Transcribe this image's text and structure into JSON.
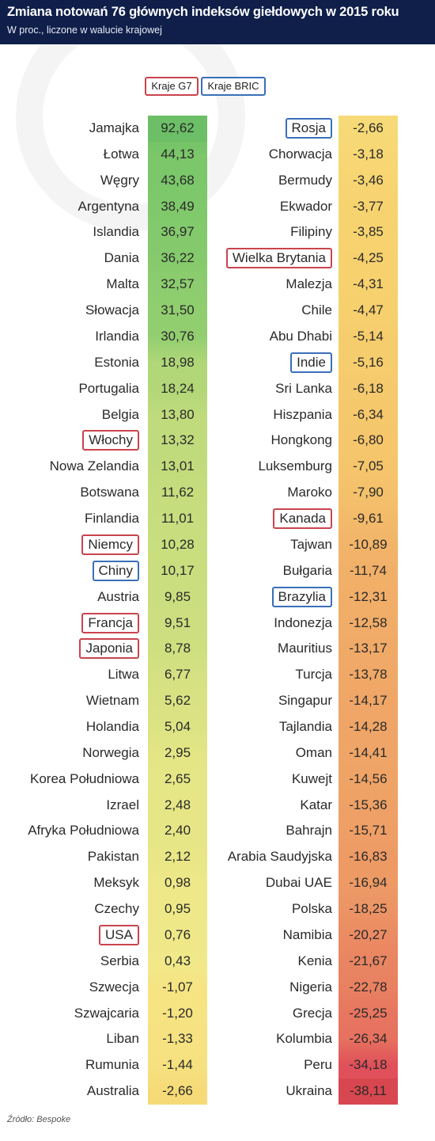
{
  "header": {
    "title": "Zmiana notowań 76 głównych indeksów giełdowych w 2015 roku",
    "subtitle": "W proc., liczone w walucie krajowej"
  },
  "legend": {
    "g7": "Kraje G7",
    "bric": "Kraje BRIC"
  },
  "colors": {
    "g7_border": "#c9444d",
    "bric_border": "#3a6fb8",
    "header_bg": "#0f1f4a",
    "scale_high": "#7cc86a",
    "scale_mid": "#f5ea8a",
    "scale_low": "#e0505a"
  },
  "source": "Źródło: Bespoke",
  "chart_data": {
    "type": "table",
    "columns": [
      [
        {
          "country": "Jamajka",
          "value": 92.62,
          "label": "92,62",
          "group": ""
        },
        {
          "country": "Łotwa",
          "value": 44.13,
          "label": "44,13",
          "group": ""
        },
        {
          "country": "Węgry",
          "value": 43.68,
          "label": "43,68",
          "group": ""
        },
        {
          "country": "Argentyna",
          "value": 38.49,
          "label": "38,49",
          "group": ""
        },
        {
          "country": "Islandia",
          "value": 36.97,
          "label": "36,97",
          "group": ""
        },
        {
          "country": "Dania",
          "value": 36.22,
          "label": "36,22",
          "group": ""
        },
        {
          "country": "Malta",
          "value": 32.57,
          "label": "32,57",
          "group": ""
        },
        {
          "country": "Słowacja",
          "value": 31.5,
          "label": "31,50",
          "group": ""
        },
        {
          "country": "Irlandia",
          "value": 30.76,
          "label": "30,76",
          "group": ""
        },
        {
          "country": "Estonia",
          "value": 18.98,
          "label": "18,98",
          "group": ""
        },
        {
          "country": "Portugalia",
          "value": 18.24,
          "label": "18,24",
          "group": ""
        },
        {
          "country": "Belgia",
          "value": 13.8,
          "label": "13,80",
          "group": ""
        },
        {
          "country": "Włochy",
          "value": 13.32,
          "label": "13,32",
          "group": "g7"
        },
        {
          "country": "Nowa Zelandia",
          "value": 13.01,
          "label": "13,01",
          "group": ""
        },
        {
          "country": "Botswana",
          "value": 11.62,
          "label": "11,62",
          "group": ""
        },
        {
          "country": "Finlandia",
          "value": 11.01,
          "label": "11,01",
          "group": ""
        },
        {
          "country": "Niemcy",
          "value": 10.28,
          "label": "10,28",
          "group": "g7"
        },
        {
          "country": "Chiny",
          "value": 10.17,
          "label": "10,17",
          "group": "bric"
        },
        {
          "country": "Austria",
          "value": 9.85,
          "label": "9,85",
          "group": ""
        },
        {
          "country": "Francja",
          "value": 9.51,
          "label": "9,51",
          "group": "g7"
        },
        {
          "country": "Japonia",
          "value": 8.78,
          "label": "8,78",
          "group": "g7"
        },
        {
          "country": "Litwa",
          "value": 6.77,
          "label": "6,77",
          "group": ""
        },
        {
          "country": "Wietnam",
          "value": 5.62,
          "label": "5,62",
          "group": ""
        },
        {
          "country": "Holandia",
          "value": 5.04,
          "label": "5,04",
          "group": ""
        },
        {
          "country": "Norwegia",
          "value": 2.95,
          "label": "2,95",
          "group": ""
        },
        {
          "country": "Korea Południowa",
          "value": 2.65,
          "label": "2,65",
          "group": ""
        },
        {
          "country": "Izrael",
          "value": 2.48,
          "label": "2,48",
          "group": ""
        },
        {
          "country": "Afryka Południowa",
          "value": 2.4,
          "label": "2,40",
          "group": ""
        },
        {
          "country": "Pakistan",
          "value": 2.12,
          "label": "2,12",
          "group": ""
        },
        {
          "country": "Meksyk",
          "value": 0.98,
          "label": "0,98",
          "group": ""
        },
        {
          "country": "Czechy",
          "value": 0.95,
          "label": "0,95",
          "group": ""
        },
        {
          "country": "USA",
          "value": 0.76,
          "label": "0,76",
          "group": "g7"
        },
        {
          "country": "Serbia",
          "value": 0.43,
          "label": "0,43",
          "group": ""
        },
        {
          "country": "Szwecja",
          "value": -1.07,
          "label": "-1,07",
          "group": ""
        },
        {
          "country": "Szwajcaria",
          "value": -1.2,
          "label": "-1,20",
          "group": ""
        },
        {
          "country": "Liban",
          "value": -1.33,
          "label": "-1,33",
          "group": ""
        },
        {
          "country": "Rumunia",
          "value": -1.44,
          "label": "-1,44",
          "group": ""
        },
        {
          "country": "Australia",
          "value": -2.66,
          "label": "-2,66",
          "group": ""
        }
      ],
      [
        {
          "country": "Rosja",
          "value": -2.66,
          "label": "-2,66",
          "group": "bric"
        },
        {
          "country": "Chorwacja",
          "value": -3.18,
          "label": "-3,18",
          "group": ""
        },
        {
          "country": "Bermudy",
          "value": -3.46,
          "label": "-3,46",
          "group": ""
        },
        {
          "country": "Ekwador",
          "value": -3.77,
          "label": "-3,77",
          "group": ""
        },
        {
          "country": "Filipiny",
          "value": -3.85,
          "label": "-3,85",
          "group": ""
        },
        {
          "country": "Wielka Brytania",
          "value": -4.25,
          "label": "-4,25",
          "group": "g7"
        },
        {
          "country": "Malezja",
          "value": -4.31,
          "label": "-4,31",
          "group": ""
        },
        {
          "country": "Chile",
          "value": -4.47,
          "label": "-4,47",
          "group": ""
        },
        {
          "country": "Abu Dhabi",
          "value": -5.14,
          "label": "-5,14",
          "group": ""
        },
        {
          "country": "Indie",
          "value": -5.16,
          "label": "-5,16",
          "group": "bric"
        },
        {
          "country": "Sri Lanka",
          "value": -6.18,
          "label": "-6,18",
          "group": ""
        },
        {
          "country": "Hiszpania",
          "value": -6.34,
          "label": "-6,34",
          "group": ""
        },
        {
          "country": "Hongkong",
          "value": -6.8,
          "label": "-6,80",
          "group": ""
        },
        {
          "country": "Luksemburg",
          "value": -7.05,
          "label": "-7,05",
          "group": ""
        },
        {
          "country": "Maroko",
          "value": -7.9,
          "label": "-7,90",
          "group": ""
        },
        {
          "country": "Kanada",
          "value": -9.61,
          "label": "-9,61",
          "group": "g7"
        },
        {
          "country": "Tajwan",
          "value": -10.89,
          "label": "-10,89",
          "group": ""
        },
        {
          "country": "Bułgaria",
          "value": -11.74,
          "label": "-11,74",
          "group": ""
        },
        {
          "country": "Brazylia",
          "value": -12.31,
          "label": "-12,31",
          "group": "bric"
        },
        {
          "country": "Indonezja",
          "value": -12.58,
          "label": "-12,58",
          "group": ""
        },
        {
          "country": "Mauritius",
          "value": -13.17,
          "label": "-13,17",
          "group": ""
        },
        {
          "country": "Turcja",
          "value": -13.78,
          "label": "-13,78",
          "group": ""
        },
        {
          "country": "Singapur",
          "value": -14.17,
          "label": "-14,17",
          "group": ""
        },
        {
          "country": "Tajlandia",
          "value": -14.28,
          "label": "-14,28",
          "group": ""
        },
        {
          "country": "Oman",
          "value": -14.41,
          "label": "-14,41",
          "group": ""
        },
        {
          "country": "Kuwejt",
          "value": -14.56,
          "label": "-14,56",
          "group": ""
        },
        {
          "country": "Katar",
          "value": -15.36,
          "label": "-15,36",
          "group": ""
        },
        {
          "country": "Bahrajn",
          "value": -15.71,
          "label": "-15,71",
          "group": ""
        },
        {
          "country": "Arabia Saudyjska",
          "value": -16.83,
          "label": "-16,83",
          "group": ""
        },
        {
          "country": "Dubai UAE",
          "value": -16.94,
          "label": "-16,94",
          "group": ""
        },
        {
          "country": "Polska",
          "value": -18.25,
          "label": "-18,25",
          "group": ""
        },
        {
          "country": "Namibia",
          "value": -20.27,
          "label": "-20,27",
          "group": ""
        },
        {
          "country": "Kenia",
          "value": -21.67,
          "label": "-21,67",
          "group": ""
        },
        {
          "country": "Nigeria",
          "value": -22.78,
          "label": "-22,78",
          "group": ""
        },
        {
          "country": "Grecja",
          "value": -25.25,
          "label": "-25,25",
          "group": ""
        },
        {
          "country": "Kolumbia",
          "value": -26.34,
          "label": "-26,34",
          "group": ""
        },
        {
          "country": "Peru",
          "value": -34.18,
          "label": "-34,18",
          "group": ""
        },
        {
          "country": "Ukraina",
          "value": -38.11,
          "label": "-38,11",
          "group": ""
        }
      ]
    ]
  }
}
